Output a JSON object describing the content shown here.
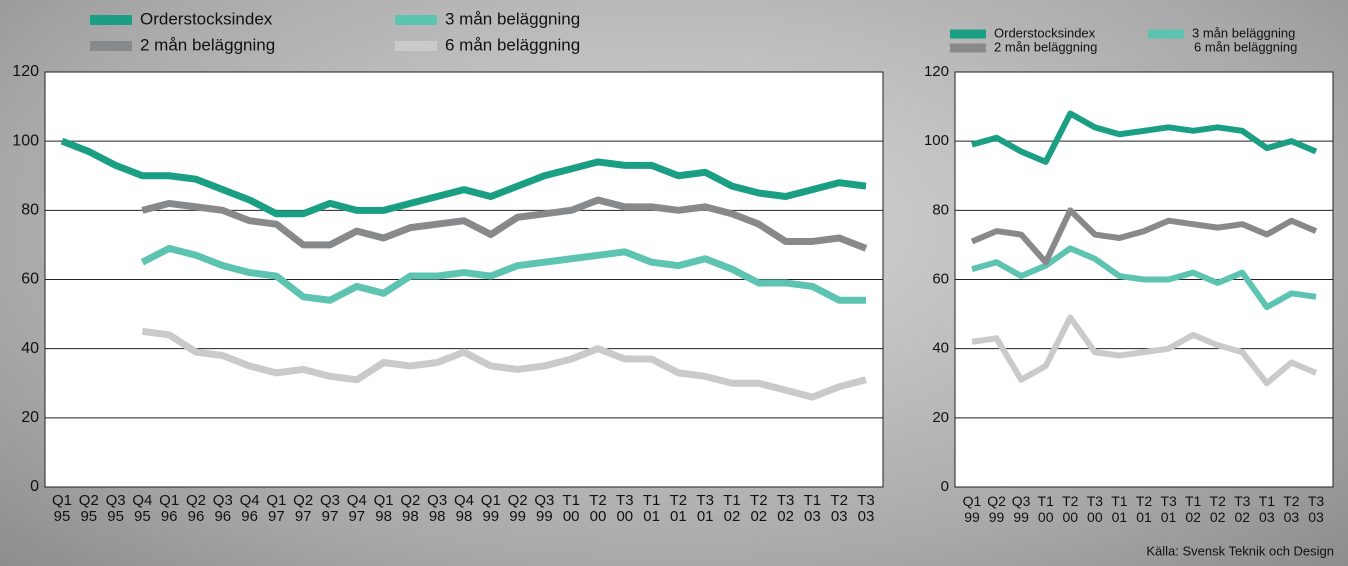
{
  "chart_data": [
    {
      "type": "line",
      "categories": [
        "Q1 95",
        "Q2 95",
        "Q3 95",
        "Q4 95",
        "Q1 96",
        "Q2 96",
        "Q3 96",
        "Q4 96",
        "Q1 97",
        "Q2 97",
        "Q3 97",
        "Q4 97",
        "Q1 98",
        "Q2 98",
        "Q3 98",
        "Q4 98",
        "Q1 99",
        "Q2 99",
        "Q3 99",
        "T1 00",
        "T2 00",
        "T3 00",
        "T1 01",
        "T2 01",
        "T3 01",
        "T1 02",
        "T2 02",
        "T3 02",
        "T1 03",
        "T2 03",
        "T3 03"
      ],
      "series": [
        {
          "name": "Orderstocksindex",
          "color": "#1a9e84",
          "values": [
            100,
            97,
            93,
            90,
            90,
            89,
            86,
            83,
            79,
            79,
            82,
            80,
            80,
            82,
            84,
            86,
            84,
            87,
            90,
            92,
            94,
            93,
            93,
            90,
            91,
            87,
            85,
            84,
            86,
            88,
            87
          ]
        },
        {
          "name": "2 mån beläggning",
          "color": "#88898b",
          "values": [
            null,
            null,
            null,
            80,
            82,
            81,
            80,
            77,
            76,
            70,
            70,
            74,
            72,
            75,
            76,
            77,
            73,
            78,
            79,
            80,
            83,
            81,
            81,
            80,
            81,
            79,
            76,
            71,
            71,
            72,
            69
          ]
        },
        {
          "name": "3 mån beläggning",
          "color": "#5cc4b0",
          "values": [
            null,
            null,
            null,
            65,
            69,
            67,
            64,
            62,
            61,
            55,
            54,
            58,
            56,
            61,
            61,
            62,
            61,
            64,
            65,
            66,
            67,
            68,
            65,
            64,
            66,
            63,
            59,
            59,
            58,
            54,
            54
          ]
        },
        {
          "name": "6 mån beläggning",
          "color": "#cacaca",
          "values": [
            null,
            null,
            null,
            45,
            44,
            39,
            38,
            35,
            33,
            34,
            32,
            31,
            36,
            35,
            36,
            39,
            35,
            34,
            35,
            37,
            40,
            37,
            37,
            33,
            32,
            30,
            30,
            28,
            26,
            29,
            31
          ]
        }
      ],
      "ylim": [
        0,
        120
      ],
      "yticks": [
        0,
        20,
        40,
        60,
        80,
        100,
        120
      ],
      "grid": true
    },
    {
      "type": "line",
      "categories": [
        "Q1 99",
        "Q2 99",
        "Q3 99",
        "T1 00",
        "T2 00",
        "T3 00",
        "T1 01",
        "T2 01",
        "T3 01",
        "T1 02",
        "T2 02",
        "T3 02",
        "T1 03",
        "T2 03",
        "T3 03"
      ],
      "series": [
        {
          "name": "Orderstocksindex",
          "color": "#1a9e84",
          "values": [
            99,
            101,
            97,
            94,
            108,
            104,
            102,
            103,
            104,
            103,
            104,
            103,
            98,
            100,
            97
          ]
        },
        {
          "name": "2 mån beläggning",
          "color": "#88898b",
          "values": [
            71,
            74,
            73,
            65,
            80,
            73,
            72,
            74,
            77,
            76,
            75,
            76,
            73,
            77,
            74
          ]
        },
        {
          "name": "3 mån beläggning",
          "color": "#5cc4b0",
          "values": [
            63,
            65,
            61,
            64,
            69,
            66,
            61,
            60,
            60,
            62,
            59,
            62,
            52,
            56,
            55
          ]
        },
        {
          "name": "6 mån beläggning",
          "color": "#cacaca",
          "values": [
            42,
            43,
            31,
            35,
            49,
            39,
            38,
            39,
            40,
            44,
            41,
            39,
            30,
            36,
            33
          ]
        }
      ],
      "ylim": [
        0,
        120
      ],
      "yticks": [
        0,
        20,
        40,
        60,
        80,
        100,
        120
      ],
      "grid": true
    }
  ],
  "source": "Källa: Svensk Teknik och Design"
}
